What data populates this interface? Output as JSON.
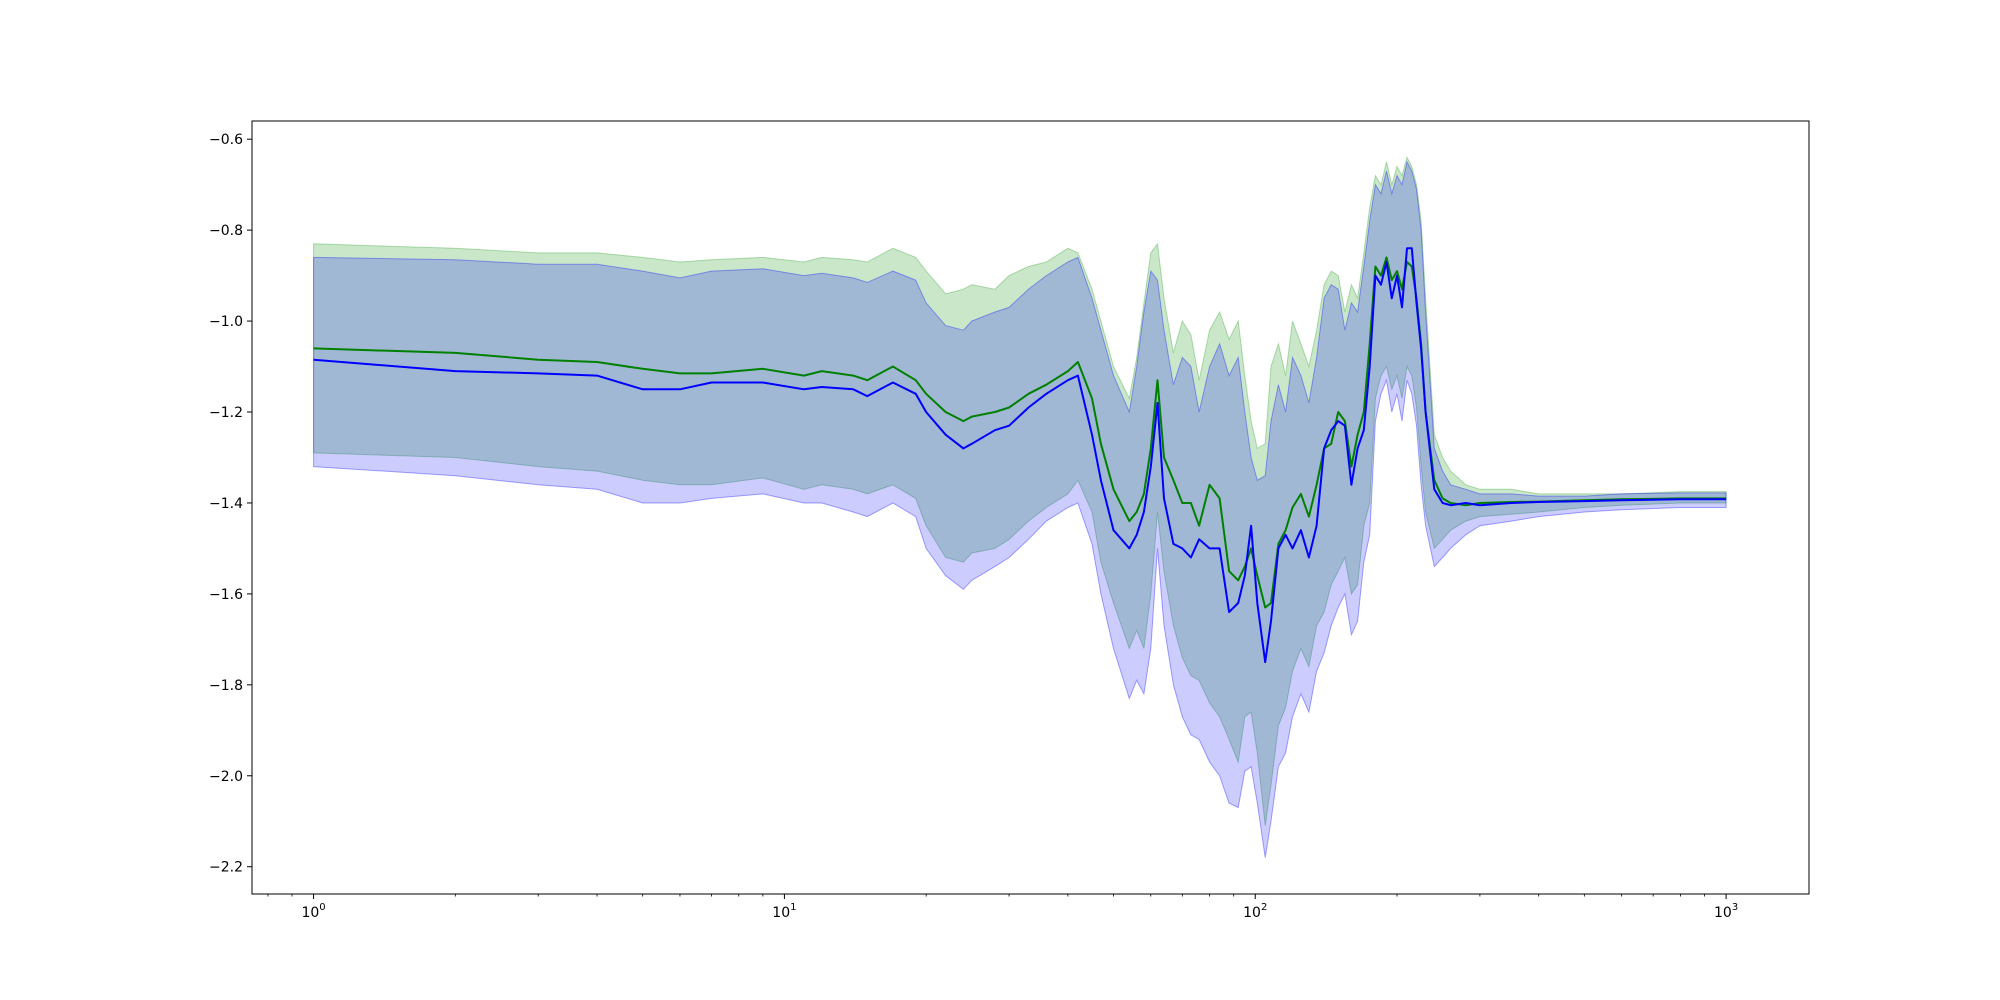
{
  "chart_data": {
    "type": "area",
    "title": "",
    "xlabel": "",
    "ylabel": "",
    "xscale": "log",
    "xlim": [
      0.74,
      1500
    ],
    "ylim": [
      -2.26,
      -0.56
    ],
    "grid": false,
    "legend": "none",
    "x_ticks": [
      {
        "base": "10",
        "exp": "0",
        "value": 1
      },
      {
        "base": "10",
        "exp": "1",
        "value": 10
      },
      {
        "base": "10",
        "exp": "2",
        "value": 100
      },
      {
        "base": "10",
        "exp": "3",
        "value": 1000
      }
    ],
    "y_ticks": [
      "−0.6",
      "−0.8",
      "−1.0",
      "−1.2",
      "−1.4",
      "−1.6",
      "−1.8",
      "−2.0",
      "−2.2"
    ],
    "y_tick_values": [
      -0.6,
      -0.8,
      -1.0,
      -1.2,
      -1.4,
      -1.6,
      -1.8,
      -2.0,
      -2.2
    ],
    "series": [
      {
        "color": "#008000",
        "band_color": "#2ca02c",
        "band_opacity": 0.25,
        "x": [
          1,
          2,
          3,
          4,
          5,
          6,
          7,
          9,
          11,
          12,
          14,
          15,
          17,
          19,
          20,
          22,
          24,
          25,
          28,
          30,
          33,
          36,
          40,
          42,
          45,
          47,
          50,
          54,
          56,
          58,
          60,
          62,
          64,
          67,
          70,
          73,
          76,
          80,
          84,
          88,
          92,
          95,
          98,
          101,
          105,
          108,
          112,
          116,
          120,
          125,
          130,
          135,
          140,
          145,
          150,
          155,
          160,
          165,
          170,
          175,
          180,
          185,
          190,
          195,
          200,
          205,
          210,
          215,
          220,
          225,
          230,
          240,
          250,
          260,
          280,
          300,
          350,
          400,
          500,
          600,
          800,
          1000
        ],
        "y": [
          -1.06,
          -1.07,
          -1.085,
          -1.09,
          -1.105,
          -1.115,
          -1.115,
          -1.105,
          -1.12,
          -1.11,
          -1.12,
          -1.13,
          -1.1,
          -1.13,
          -1.16,
          -1.2,
          -1.22,
          -1.21,
          -1.2,
          -1.19,
          -1.16,
          -1.14,
          -1.11,
          -1.09,
          -1.17,
          -1.27,
          -1.37,
          -1.44,
          -1.42,
          -1.38,
          -1.28,
          -1.13,
          -1.3,
          -1.35,
          -1.4,
          -1.4,
          -1.45,
          -1.36,
          -1.39,
          -1.55,
          -1.57,
          -1.54,
          -1.5,
          -1.56,
          -1.63,
          -1.62,
          -1.49,
          -1.46,
          -1.41,
          -1.38,
          -1.43,
          -1.36,
          -1.28,
          -1.27,
          -1.2,
          -1.22,
          -1.32,
          -1.25,
          -1.2,
          -1.05,
          -0.88,
          -0.9,
          -0.86,
          -0.91,
          -0.89,
          -0.93,
          -0.87,
          -0.88,
          -0.95,
          -1.05,
          -1.2,
          -1.35,
          -1.39,
          -1.4,
          -1.405,
          -1.4,
          -1.398,
          -1.397,
          -1.394,
          -1.392,
          -1.39,
          -1.39
        ],
        "upper": [
          -0.83,
          -0.84,
          -0.85,
          -0.85,
          -0.86,
          -0.87,
          -0.865,
          -0.86,
          -0.87,
          -0.86,
          -0.865,
          -0.87,
          -0.84,
          -0.86,
          -0.89,
          -0.94,
          -0.93,
          -0.92,
          -0.93,
          -0.9,
          -0.88,
          -0.87,
          -0.84,
          -0.85,
          -0.93,
          -1.0,
          -1.1,
          -1.17,
          -1.08,
          -0.96,
          -0.85,
          -0.83,
          -0.95,
          -1.07,
          -1.0,
          -1.03,
          -1.13,
          -1.02,
          -0.98,
          -1.04,
          -1.0,
          -1.12,
          -1.22,
          -1.28,
          -1.27,
          -1.1,
          -1.05,
          -1.12,
          -1.0,
          -1.05,
          -1.1,
          -1.02,
          -0.92,
          -0.89,
          -0.9,
          -0.98,
          -0.92,
          -0.95,
          -0.85,
          -0.75,
          -0.68,
          -0.7,
          -0.65,
          -0.7,
          -0.66,
          -0.68,
          -0.64,
          -0.66,
          -0.7,
          -0.78,
          -0.95,
          -1.25,
          -1.3,
          -1.33,
          -1.36,
          -1.37,
          -1.37,
          -1.38,
          -1.38,
          -1.38,
          -1.375,
          -1.375
        ],
        "lower": [
          -1.29,
          -1.3,
          -1.32,
          -1.33,
          -1.35,
          -1.36,
          -1.36,
          -1.345,
          -1.37,
          -1.36,
          -1.37,
          -1.38,
          -1.36,
          -1.39,
          -1.45,
          -1.52,
          -1.53,
          -1.51,
          -1.5,
          -1.48,
          -1.44,
          -1.41,
          -1.38,
          -1.35,
          -1.42,
          -1.53,
          -1.62,
          -1.72,
          -1.68,
          -1.72,
          -1.6,
          -1.42,
          -1.55,
          -1.67,
          -1.74,
          -1.78,
          -1.79,
          -1.84,
          -1.87,
          -1.92,
          -1.97,
          -1.87,
          -1.86,
          -1.95,
          -2.11,
          -2.02,
          -1.89,
          -1.85,
          -1.77,
          -1.72,
          -1.76,
          -1.67,
          -1.64,
          -1.58,
          -1.55,
          -1.52,
          -1.6,
          -1.58,
          -1.45,
          -1.4,
          -1.17,
          -1.12,
          -1.1,
          -1.15,
          -1.12,
          -1.17,
          -1.1,
          -1.12,
          -1.19,
          -1.32,
          -1.42,
          -1.5,
          -1.48,
          -1.46,
          -1.44,
          -1.43,
          -1.425,
          -1.42,
          -1.41,
          -1.405,
          -1.4,
          -1.4
        ]
      },
      {
        "color": "#0000ff",
        "band_color": "#0000ff",
        "band_opacity": 0.2,
        "x": [
          1,
          2,
          3,
          4,
          5,
          6,
          7,
          9,
          11,
          12,
          14,
          15,
          17,
          19,
          20,
          22,
          24,
          25,
          28,
          30,
          33,
          36,
          40,
          42,
          45,
          47,
          50,
          54,
          56,
          58,
          60,
          62,
          64,
          67,
          70,
          73,
          76,
          80,
          84,
          88,
          92,
          95,
          98,
          101,
          105,
          108,
          112,
          116,
          120,
          125,
          130,
          135,
          140,
          145,
          150,
          155,
          160,
          165,
          170,
          175,
          180,
          185,
          190,
          195,
          200,
          205,
          210,
          215,
          220,
          225,
          230,
          240,
          250,
          260,
          280,
          300,
          350,
          400,
          500,
          600,
          800,
          1000
        ],
        "y": [
          -1.085,
          -1.11,
          -1.115,
          -1.12,
          -1.15,
          -1.15,
          -1.135,
          -1.135,
          -1.15,
          -1.145,
          -1.15,
          -1.165,
          -1.135,
          -1.16,
          -1.2,
          -1.25,
          -1.28,
          -1.27,
          -1.24,
          -1.23,
          -1.19,
          -1.16,
          -1.13,
          -1.12,
          -1.25,
          -1.35,
          -1.46,
          -1.5,
          -1.47,
          -1.42,
          -1.32,
          -1.18,
          -1.39,
          -1.49,
          -1.5,
          -1.52,
          -1.48,
          -1.5,
          -1.5,
          -1.64,
          -1.62,
          -1.56,
          -1.45,
          -1.62,
          -1.75,
          -1.66,
          -1.5,
          -1.47,
          -1.5,
          -1.46,
          -1.52,
          -1.45,
          -1.28,
          -1.24,
          -1.22,
          -1.23,
          -1.36,
          -1.28,
          -1.24,
          -1.1,
          -0.9,
          -0.92,
          -0.87,
          -0.95,
          -0.9,
          -0.97,
          -0.84,
          -0.84,
          -0.96,
          -1.06,
          -1.2,
          -1.37,
          -1.4,
          -1.405,
          -1.4,
          -1.405,
          -1.4,
          -1.398,
          -1.396,
          -1.394,
          -1.392,
          -1.392
        ],
        "upper": [
          -0.86,
          -0.865,
          -0.875,
          -0.875,
          -0.89,
          -0.905,
          -0.89,
          -0.885,
          -0.9,
          -0.895,
          -0.905,
          -0.915,
          -0.89,
          -0.91,
          -0.96,
          -1.01,
          -1.02,
          -1.0,
          -0.98,
          -0.97,
          -0.93,
          -0.9,
          -0.87,
          -0.86,
          -0.95,
          -1.02,
          -1.12,
          -1.2,
          -1.1,
          -0.98,
          -0.89,
          -0.91,
          -1.02,
          -1.14,
          -1.08,
          -1.1,
          -1.2,
          -1.1,
          -1.05,
          -1.12,
          -1.08,
          -1.2,
          -1.3,
          -1.35,
          -1.34,
          -1.22,
          -1.14,
          -1.2,
          -1.08,
          -1.12,
          -1.18,
          -1.08,
          -0.95,
          -0.92,
          -0.93,
          -1.02,
          -0.96,
          -0.98,
          -0.88,
          -0.78,
          -0.7,
          -0.72,
          -0.67,
          -0.72,
          -0.68,
          -0.7,
          -0.65,
          -0.67,
          -0.71,
          -0.8,
          -0.98,
          -1.28,
          -1.33,
          -1.36,
          -1.37,
          -1.38,
          -1.38,
          -1.385,
          -1.385,
          -1.38,
          -1.378,
          -1.378
        ],
        "lower": [
          -1.32,
          -1.34,
          -1.36,
          -1.37,
          -1.4,
          -1.4,
          -1.39,
          -1.38,
          -1.4,
          -1.4,
          -1.42,
          -1.43,
          -1.4,
          -1.43,
          -1.5,
          -1.56,
          -1.59,
          -1.57,
          -1.54,
          -1.52,
          -1.48,
          -1.44,
          -1.41,
          -1.4,
          -1.49,
          -1.6,
          -1.72,
          -1.83,
          -1.79,
          -1.82,
          -1.72,
          -1.5,
          -1.67,
          -1.8,
          -1.87,
          -1.91,
          -1.92,
          -1.97,
          -2.0,
          -2.06,
          -2.07,
          -1.99,
          -1.98,
          -2.06,
          -2.18,
          -2.1,
          -1.98,
          -1.95,
          -1.87,
          -1.82,
          -1.86,
          -1.77,
          -1.73,
          -1.67,
          -1.63,
          -1.6,
          -1.69,
          -1.66,
          -1.53,
          -1.47,
          -1.22,
          -1.16,
          -1.13,
          -1.2,
          -1.16,
          -1.22,
          -1.13,
          -1.16,
          -1.23,
          -1.36,
          -1.45,
          -1.54,
          -1.52,
          -1.5,
          -1.47,
          -1.45,
          -1.44,
          -1.43,
          -1.42,
          -1.415,
          -1.41,
          -1.41
        ]
      }
    ]
  }
}
